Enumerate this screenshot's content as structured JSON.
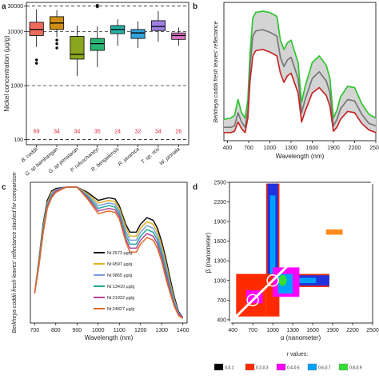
{
  "panels": {
    "a": {
      "letter": "a",
      "chart_data": {
        "type": "boxplot",
        "ylabel": "Nickel concentration (µg/g)",
        "yscale": "log",
        "ylim": [
          80,
          35000
        ],
        "yticks": [
          100,
          1000,
          10000,
          30000
        ],
        "ytick_labels": [
          "100",
          "1000",
          "10000",
          "30000"
        ],
        "hlines": [
          30000,
          10000,
          1000,
          100
        ],
        "categories": [
          "B. coddii",
          "G. sp bambangan",
          "G. sp penataran",
          "P. rufuschaneyi",
          "R. bengalensis",
          "R. javanica",
          "T. sp. nov",
          "W. pinnata"
        ],
        "counts": [
          "69",
          "34",
          "34",
          "35",
          "24",
          "32",
          "34",
          "26"
        ],
        "boxes": [
          {
            "min": 5200,
            "q1": 8500,
            "median": 11000,
            "q3": 15000,
            "max": 26000,
            "outliers": [
              3000,
              2600
            ],
            "color": "#ef6c5d"
          },
          {
            "min": 8000,
            "q1": 11000,
            "median": 14500,
            "q3": 19000,
            "max": 25000,
            "outliers": [
              7000,
              6000,
              5000
            ],
            "color": "#cf8f16"
          },
          {
            "min": 1500,
            "q1": 3100,
            "median": 3800,
            "q3": 8200,
            "max": 13000,
            "outliers": [],
            "color": "#8aa51e"
          },
          {
            "min": 2200,
            "q1": 4500,
            "median": 6000,
            "q3": 7500,
            "max": 12500,
            "outliers": [
              29000,
              30000,
              31000
            ],
            "color": "#2bb573"
          },
          {
            "min": 5500,
            "q1": 9200,
            "median": 11000,
            "q3": 13000,
            "max": 17000,
            "outliers": [],
            "color": "#27b2a5"
          },
          {
            "min": 5000,
            "q1": 7500,
            "median": 9500,
            "q3": 11000,
            "max": 15500,
            "outliers": [],
            "color": "#33a4dd"
          },
          {
            "min": 6500,
            "q1": 10500,
            "median": 12500,
            "q3": 16000,
            "max": 24000,
            "outliers": [],
            "color": "#a07fe0"
          },
          {
            "min": 5500,
            "q1": 7200,
            "median": 8500,
            "q3": 9500,
            "max": 12000,
            "outliers": [],
            "color": "#e075c8"
          }
        ]
      }
    },
    "b": {
      "letter": "b",
      "chart_data": {
        "type": "line",
        "xlabel": "Wavelength (nm)",
        "ylabel": "Berkheya coddii fresh leaves' reflectance",
        "xlim": [
          350,
          2500
        ],
        "xticks": [
          400,
          700,
          1000,
          1300,
          1600,
          1900,
          2200,
          2500
        ],
        "x": [
          350,
          450,
          500,
          550,
          600,
          650,
          690,
          720,
          760,
          800,
          900,
          1000,
          1100,
          1150,
          1200,
          1250,
          1300,
          1400,
          1450,
          1500,
          1600,
          1700,
          1800,
          1850,
          1900,
          1950,
          2000,
          2100,
          2200,
          2300,
          2400,
          2500
        ],
        "series": [
          {
            "values": [
              0.15,
              0.16,
              0.18,
              0.3,
              0.2,
              0.16,
              0.3,
              0.65,
              0.92,
              0.96,
              0.97,
              0.96,
              0.93,
              0.75,
              0.68,
              0.73,
              0.75,
              0.58,
              0.28,
              0.4,
              0.58,
              0.63,
              0.56,
              0.46,
              0.16,
              0.22,
              0.32,
              0.4,
              0.39,
              0.27,
              0.19,
              0.16
            ],
            "color": "#2fc52f"
          },
          {
            "values": [
              0.09,
              0.09,
              0.1,
              0.2,
              0.13,
              0.09,
              0.22,
              0.55,
              0.78,
              0.82,
              0.83,
              0.81,
              0.78,
              0.62,
              0.55,
              0.6,
              0.62,
              0.46,
              0.2,
              0.3,
              0.46,
              0.51,
              0.44,
              0.35,
              0.1,
              0.15,
              0.23,
              0.3,
              0.29,
              0.19,
              0.12,
              0.1
            ],
            "color": "#777777"
          },
          {
            "values": [
              0.05,
              0.05,
              0.06,
              0.13,
              0.08,
              0.05,
              0.16,
              0.44,
              0.63,
              0.67,
              0.68,
              0.66,
              0.63,
              0.5,
              0.43,
              0.48,
              0.5,
              0.35,
              0.13,
              0.21,
              0.35,
              0.39,
              0.33,
              0.25,
              0.06,
              0.09,
              0.15,
              0.21,
              0.2,
              0.12,
              0.07,
              0.05
            ],
            "color": "#c62828"
          }
        ]
      }
    },
    "c": {
      "letter": "c",
      "chart_data": {
        "type": "line",
        "xlabel": "Wavelength (nm)",
        "ylabel": "Berkheya coddii fresh leaves' reflectance stacked for comparison",
        "xlim": [
          680,
          1420
        ],
        "xticks": [
          700,
          800,
          900,
          1000,
          1100,
          1200,
          1300,
          1400
        ],
        "x": [
          700,
          720,
          740,
          760,
          780,
          800,
          850,
          900,
          950,
          1000,
          1050,
          1080,
          1100,
          1130,
          1150,
          1180,
          1200,
          1230,
          1260,
          1280,
          1300,
          1320,
          1340,
          1360,
          1380,
          1400
        ],
        "series": [
          {
            "name": "Ni:2573 µg/g",
            "color": "#111111",
            "values": [
              0.2,
              0.45,
              0.72,
              0.9,
              0.97,
              0.99,
              1.0,
              1.0,
              0.96,
              0.9,
              0.92,
              0.91,
              0.86,
              0.72,
              0.66,
              0.66,
              0.72,
              0.77,
              0.75,
              0.69,
              0.59,
              0.46,
              0.31,
              0.17,
              0.06,
              0.02
            ]
          },
          {
            "name": "Ni:4597 µg/g",
            "color": "#e0b020",
            "values": [
              0.2,
              0.44,
              0.7,
              0.88,
              0.96,
              0.98,
              1.0,
              1.0,
              0.95,
              0.88,
              0.9,
              0.89,
              0.84,
              0.7,
              0.63,
              0.63,
              0.69,
              0.74,
              0.72,
              0.66,
              0.56,
              0.43,
              0.28,
              0.15,
              0.05,
              0.02
            ]
          },
          {
            "name": "Ni:9865 µg/g",
            "color": "#7aa0d8",
            "values": [
              0.2,
              0.43,
              0.69,
              0.87,
              0.95,
              0.98,
              1.0,
              1.0,
              0.94,
              0.86,
              0.88,
              0.87,
              0.82,
              0.67,
              0.6,
              0.6,
              0.66,
              0.71,
              0.69,
              0.63,
              0.53,
              0.4,
              0.26,
              0.14,
              0.05,
              0.02
            ]
          },
          {
            "name": "Ni:13410 µg/g",
            "color": "#1fa89a",
            "values": [
              0.2,
              0.42,
              0.68,
              0.86,
              0.94,
              0.97,
              1.0,
              1.0,
              0.93,
              0.84,
              0.86,
              0.85,
              0.8,
              0.64,
              0.57,
              0.57,
              0.63,
              0.68,
              0.66,
              0.6,
              0.5,
              0.37,
              0.24,
              0.12,
              0.04,
              0.02
            ]
          },
          {
            "name": "Ni:21922 µg/g",
            "color": "#b0479e",
            "values": [
              0.2,
              0.41,
              0.66,
              0.85,
              0.93,
              0.97,
              1.0,
              1.0,
              0.92,
              0.82,
              0.84,
              0.83,
              0.78,
              0.61,
              0.54,
              0.54,
              0.6,
              0.65,
              0.63,
              0.57,
              0.47,
              0.34,
              0.22,
              0.11,
              0.04,
              0.02
            ]
          },
          {
            "name": "Ni:24827 µg/g",
            "color": "#e06a2a",
            "values": [
              0.2,
              0.4,
              0.65,
              0.84,
              0.92,
              0.96,
              1.0,
              1.0,
              0.91,
              0.8,
              0.82,
              0.81,
              0.76,
              0.59,
              0.51,
              0.51,
              0.57,
              0.62,
              0.6,
              0.54,
              0.44,
              0.31,
              0.2,
              0.1,
              0.03,
              0.01
            ]
          }
        ]
      }
    },
    "d": {
      "letter": "d",
      "chart_data": {
        "type": "heatmap",
        "xlabel": "α (nanometer)",
        "ylabel": "β (nanometer)",
        "xlim": [
          350,
          2500
        ],
        "ylim": [
          350,
          2500
        ],
        "xticks": [
          400,
          700,
          1000,
          1300,
          1600,
          1900,
          2200,
          2500
        ],
        "yticks": [
          400,
          700,
          1000,
          1300,
          1600,
          1900,
          2200,
          2500
        ],
        "legend_title": "r values:",
        "legend": [
          {
            "label": "0-0.1",
            "color": "#000000"
          },
          {
            "label": "0.2-0.3",
            "color": "#ff2a00"
          },
          {
            "label": "0.4-0.5",
            "color": "#ff00ff"
          },
          {
            "label": "0.6-0.7",
            "color": "#00a0ff"
          },
          {
            "label": "0.8-0.9",
            "color": "#33dd33"
          }
        ]
      }
    }
  }
}
